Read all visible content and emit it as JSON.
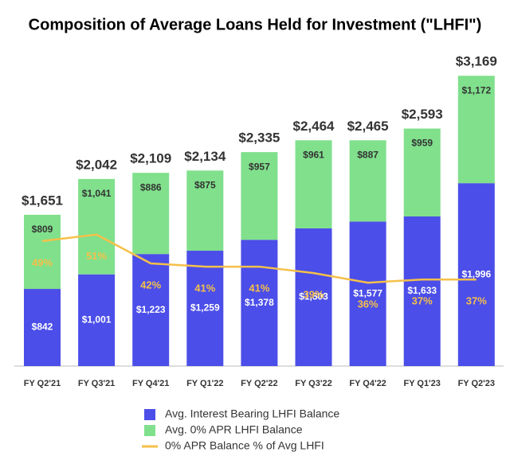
{
  "chart_data": {
    "type": "bar",
    "stacked": true,
    "title": "Composition of Average Loans Held for Investment (\"LHFI\")",
    "categories": [
      "FY Q2'21",
      "FY Q3'21",
      "FY Q4'21",
      "FY Q1'22",
      "FY Q2'22",
      "FY Q3'22",
      "FY Q4'22",
      "FY Q1'23",
      "FY Q2'23"
    ],
    "series": [
      {
        "name": "Avg. Interest Bearing LHFI Balance",
        "color": "#4b4ee8",
        "values": [
          842,
          1001,
          1223,
          1259,
          1378,
          1503,
          1577,
          1633,
          1996
        ],
        "value_labels": [
          "$842",
          "$1,001",
          "$1,223",
          "$1,259",
          "$1,378",
          "$1,503",
          "$1,577",
          "$1,633",
          "$1,996"
        ]
      },
      {
        "name": "Avg. 0% APR LHFI Balance",
        "color": "#80e08c",
        "values": [
          809,
          1041,
          886,
          875,
          957,
          961,
          887,
          959,
          1172
        ],
        "value_labels": [
          "$809",
          "$1,041",
          "$886",
          "$875",
          "$957",
          "$961",
          "$887",
          "$959",
          "$1,172"
        ]
      },
      {
        "name": "0% APR Balance % of Avg LHFI",
        "color": "#f5c04a",
        "type": "line",
        "axis": "y2",
        "values": [
          49,
          51,
          42,
          41,
          41,
          39,
          36,
          37,
          37
        ],
        "value_labels": [
          "49%",
          "51%",
          "42%",
          "41%",
          "41%",
          "39%",
          "36%",
          "37%",
          "37%"
        ]
      }
    ],
    "totals": {
      "values": [
        1651,
        2042,
        2109,
        2134,
        2335,
        2464,
        2465,
        2593,
        3169
      ],
      "value_labels": [
        "$1,651",
        "$2,042",
        "$2,109",
        "$2,134",
        "$2,335",
        "$2,464",
        "$2,465",
        "$2,593",
        "$3,169"
      ]
    },
    "ylim": [
      0,
      3500
    ],
    "y2lim": [
      10,
      110
    ],
    "grid": false,
    "legend": "bottom"
  }
}
